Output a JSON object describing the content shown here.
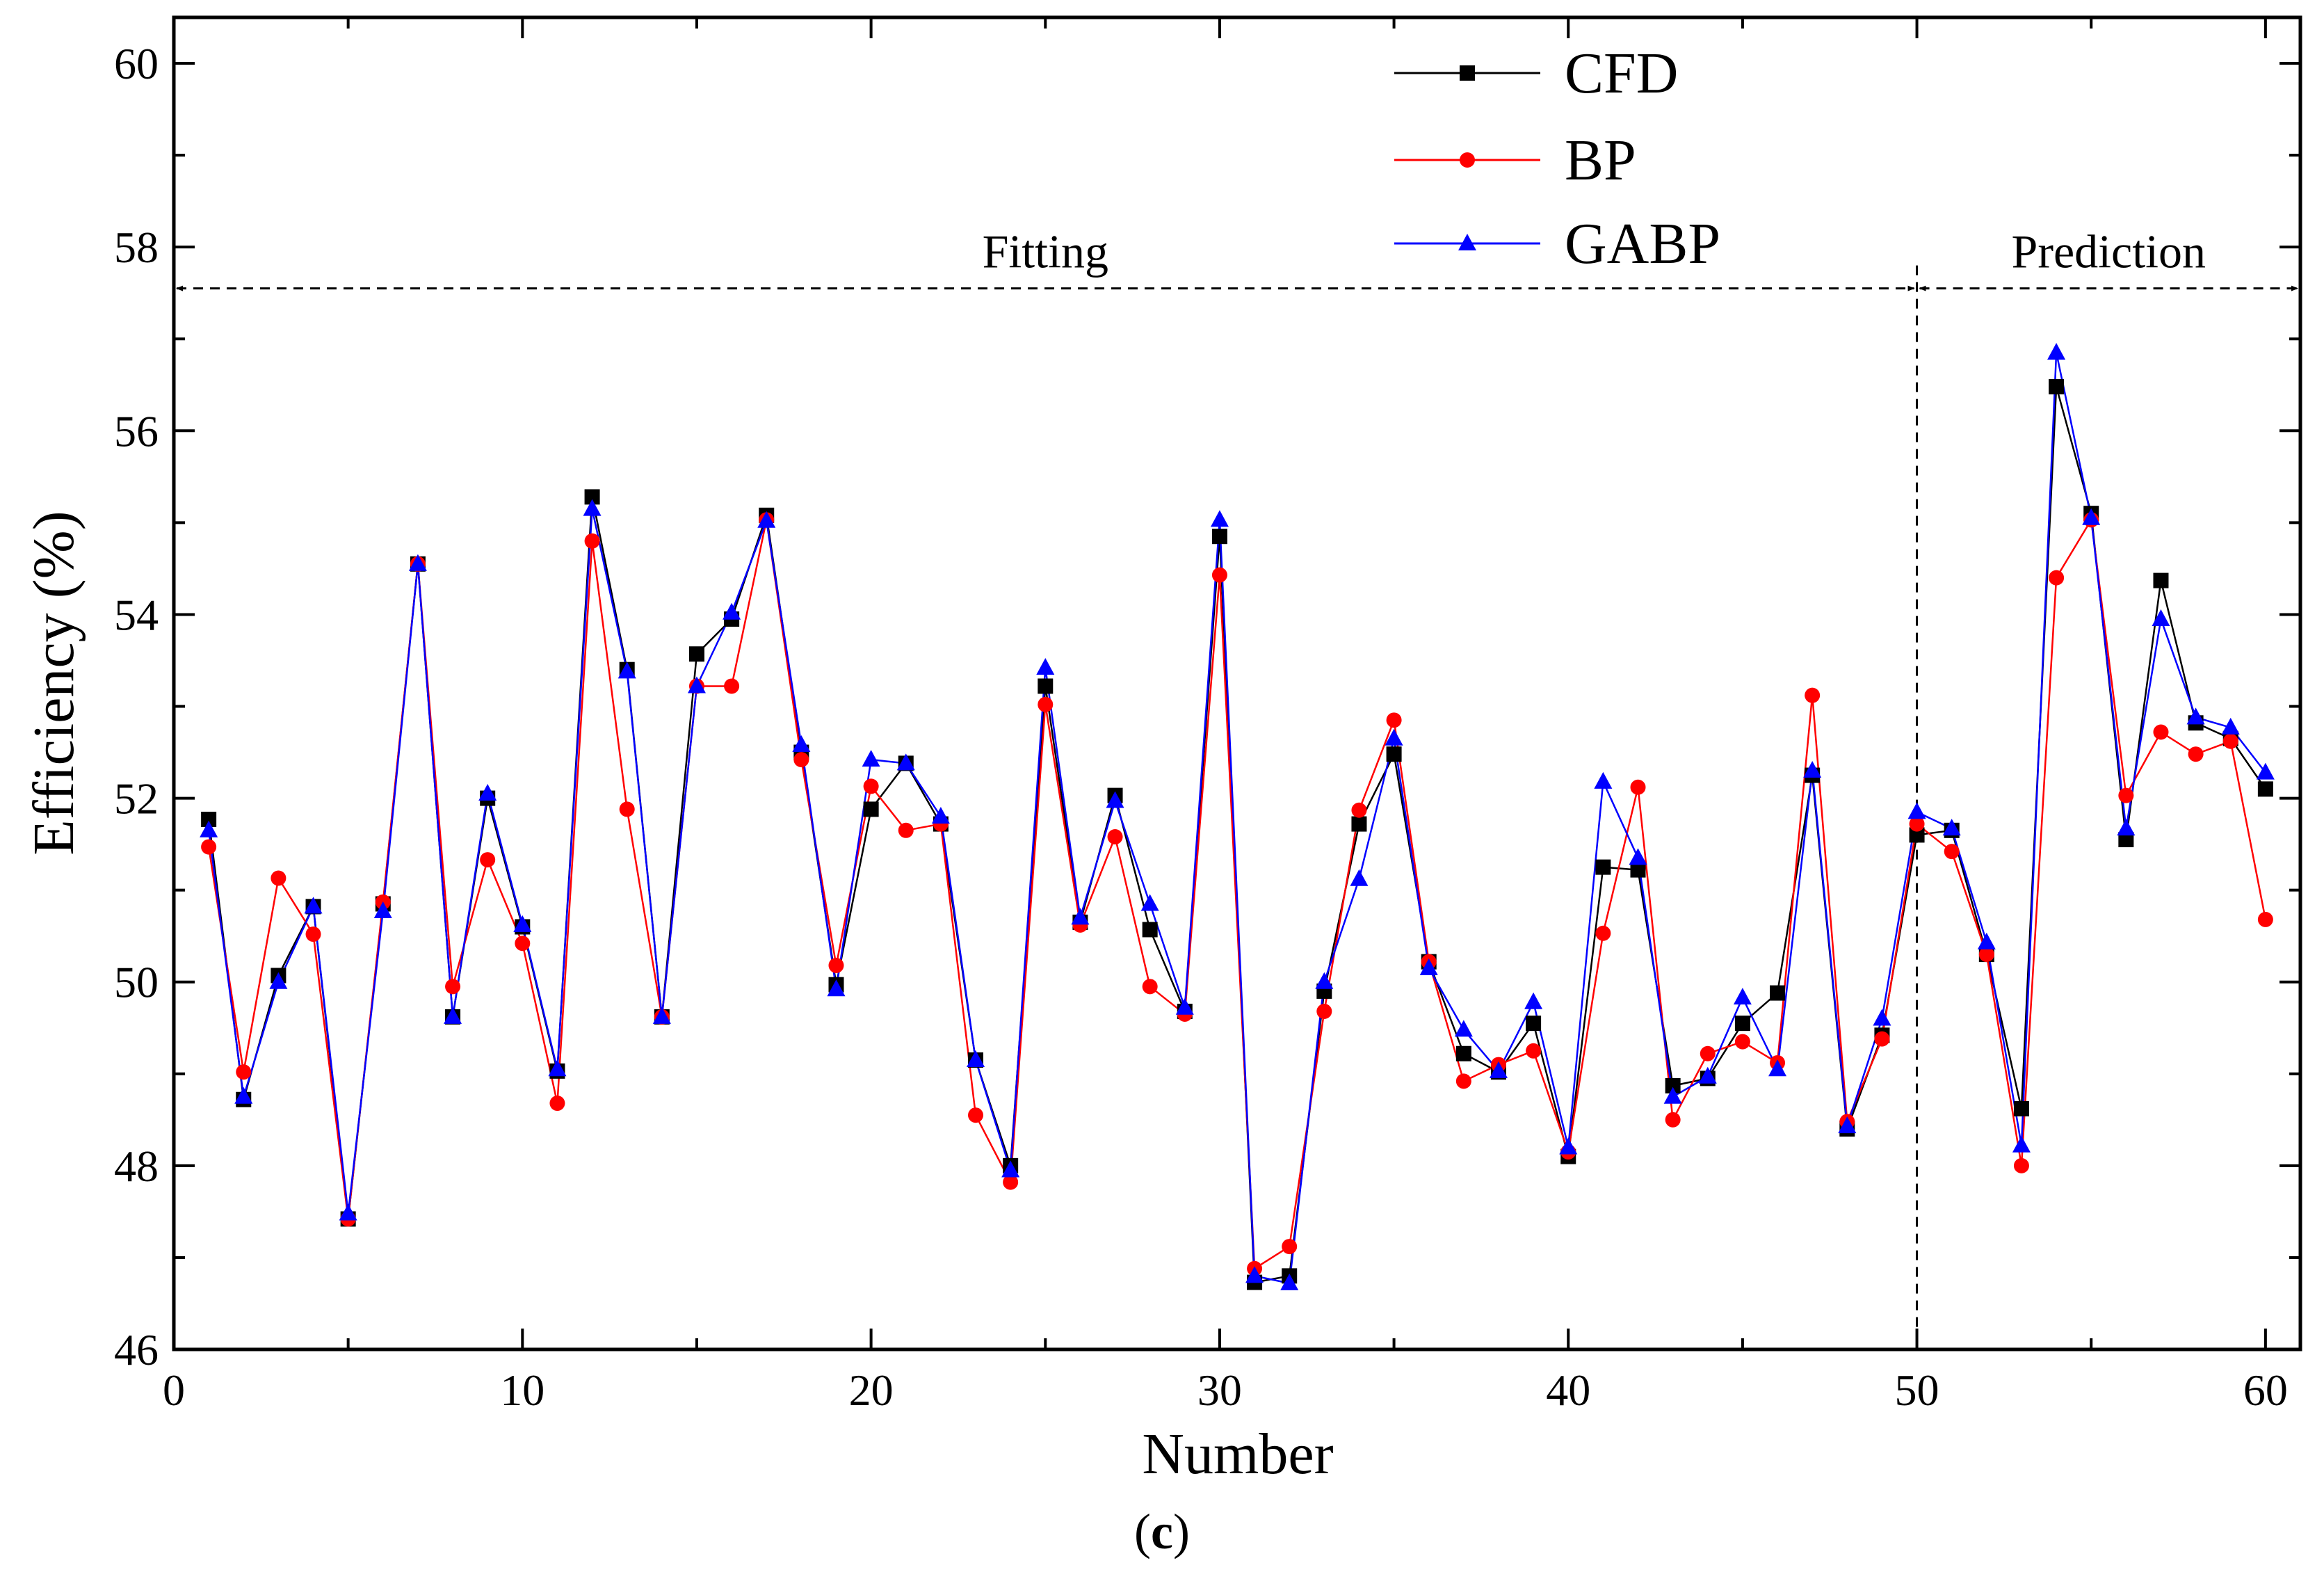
{
  "chart_data": {
    "type": "line",
    "xlabel": "Number",
    "ylabel": "Efficiency (%)",
    "xlim": [
      0,
      61
    ],
    "ylim": [
      46,
      60.5
    ],
    "xticks": [
      0,
      10,
      20,
      30,
      40,
      50,
      60
    ],
    "yticks": [
      46,
      48,
      50,
      52,
      54,
      56,
      58,
      60
    ],
    "caption_open": "(",
    "caption_letter": "c",
    "caption_close": ")",
    "annotations": {
      "fitting_label": "Fitting",
      "prediction_label": "Prediction",
      "arrow_y": 57.55,
      "split_x": 50
    },
    "x": [
      1,
      2,
      3,
      4,
      5,
      6,
      7,
      8,
      9,
      10,
      11,
      12,
      13,
      14,
      15,
      16,
      17,
      18,
      19,
      20,
      21,
      22,
      23,
      24,
      25,
      26,
      27,
      28,
      29,
      30,
      31,
      32,
      33,
      34,
      35,
      36,
      37,
      38,
      39,
      40,
      41,
      42,
      43,
      44,
      45,
      46,
      47,
      48,
      49,
      50,
      51,
      52,
      53,
      54,
      55,
      56,
      57,
      58,
      59,
      60
    ],
    "series": [
      {
        "name": "CFD",
        "color": "#000000",
        "marker": "square",
        "values": [
          51.77,
          48.72,
          50.07,
          50.82,
          47.42,
          50.85,
          54.55,
          49.62,
          52.0,
          50.6,
          49.03,
          55.28,
          53.4,
          49.62,
          53.57,
          53.95,
          55.08,
          52.5,
          49.97,
          51.88,
          52.38,
          51.72,
          49.15,
          48.0,
          53.22,
          50.65,
          52.03,
          50.57,
          49.68,
          54.85,
          46.73,
          46.8,
          49.9,
          51.72,
          52.48,
          50.22,
          49.22,
          49.02,
          49.55,
          48.1,
          51.25,
          51.22,
          48.87,
          48.95,
          49.55,
          49.88,
          52.25,
          48.4,
          49.42,
          51.6,
          51.65,
          50.3,
          48.62,
          56.48,
          55.1,
          51.55,
          54.37,
          52.82,
          52.65,
          52.1
        ]
      },
      {
        "name": "BP",
        "color": "#ff0000",
        "marker": "circle",
        "values": [
          51.47,
          49.02,
          51.13,
          50.52,
          47.42,
          50.87,
          54.55,
          49.95,
          51.33,
          50.42,
          48.68,
          54.8,
          51.88,
          49.62,
          53.22,
          53.22,
          55.03,
          52.42,
          50.18,
          52.13,
          51.65,
          51.72,
          48.55,
          47.82,
          53.02,
          50.62,
          51.58,
          49.95,
          49.65,
          54.43,
          46.88,
          47.12,
          49.68,
          51.87,
          52.85,
          50.22,
          48.92,
          49.1,
          49.25,
          48.15,
          50.53,
          52.12,
          48.5,
          49.22,
          49.35,
          49.12,
          53.12,
          48.48,
          49.38,
          51.72,
          51.42,
          50.3,
          48.0,
          54.4,
          55.03,
          52.03,
          52.72,
          52.48,
          52.62,
          50.68
        ]
      },
      {
        "name": "GABP",
        "color": "#0000ff",
        "marker": "triangle",
        "values": [
          51.65,
          48.75,
          50.0,
          50.82,
          47.48,
          50.77,
          54.55,
          49.62,
          52.05,
          50.62,
          49.05,
          55.15,
          53.38,
          49.62,
          53.22,
          54.02,
          55.02,
          52.58,
          49.92,
          52.42,
          52.38,
          51.8,
          49.15,
          47.95,
          53.42,
          50.7,
          51.97,
          50.85,
          49.72,
          55.03,
          46.8,
          46.72,
          50.0,
          51.12,
          52.65,
          50.15,
          49.48,
          49.03,
          49.78,
          48.2,
          52.18,
          51.35,
          48.75,
          48.97,
          49.83,
          49.05,
          52.3,
          48.43,
          49.6,
          51.85,
          51.67,
          50.43,
          48.22,
          56.85,
          55.05,
          51.67,
          53.95,
          52.88,
          52.77,
          52.28
        ]
      }
    ]
  }
}
